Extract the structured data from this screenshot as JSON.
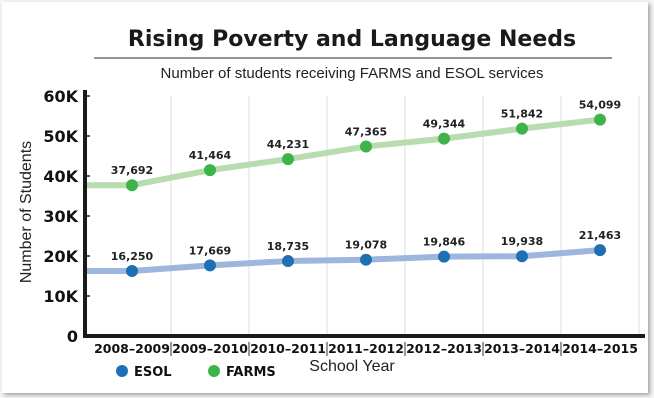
{
  "colors": {
    "esol": "#1f6fb4",
    "farms": "#3db34a",
    "esol_line": "#9db6dc",
    "farms_line": "#b8dcae"
  },
  "chart_data": {
    "type": "line",
    "title": "Rising Poverty and Language Needs",
    "subtitle": "Number of students receiving FARMS and ESOL services",
    "xlabel": "School Year",
    "ylabel": "Number of Students",
    "ylim": [
      0,
      60000
    ],
    "yticks": [
      "0",
      "10K",
      "20K",
      "30K",
      "40K",
      "50K",
      "60K"
    ],
    "categories": [
      "2008–2009",
      "2009–2010",
      "2010–2011",
      "2011–2012",
      "2012–2013",
      "2013–2014",
      "2014–2015"
    ],
    "grid": "vertical",
    "legend_position": "bottom-left",
    "series": [
      {
        "name": "ESOL",
        "values": [
          16250,
          17669,
          18735,
          19078,
          19846,
          19938,
          21463
        ],
        "labels": [
          "16,250",
          "17,669",
          "18,735",
          "19,078",
          "19,846",
          "19,938",
          "21,463"
        ]
      },
      {
        "name": "FARMS",
        "values": [
          37692,
          41464,
          44231,
          47365,
          49344,
          51842,
          54099
        ],
        "labels": [
          "37,692",
          "41,464",
          "44,231",
          "47,365",
          "49,344",
          "51,842",
          "54,099"
        ]
      }
    ]
  }
}
